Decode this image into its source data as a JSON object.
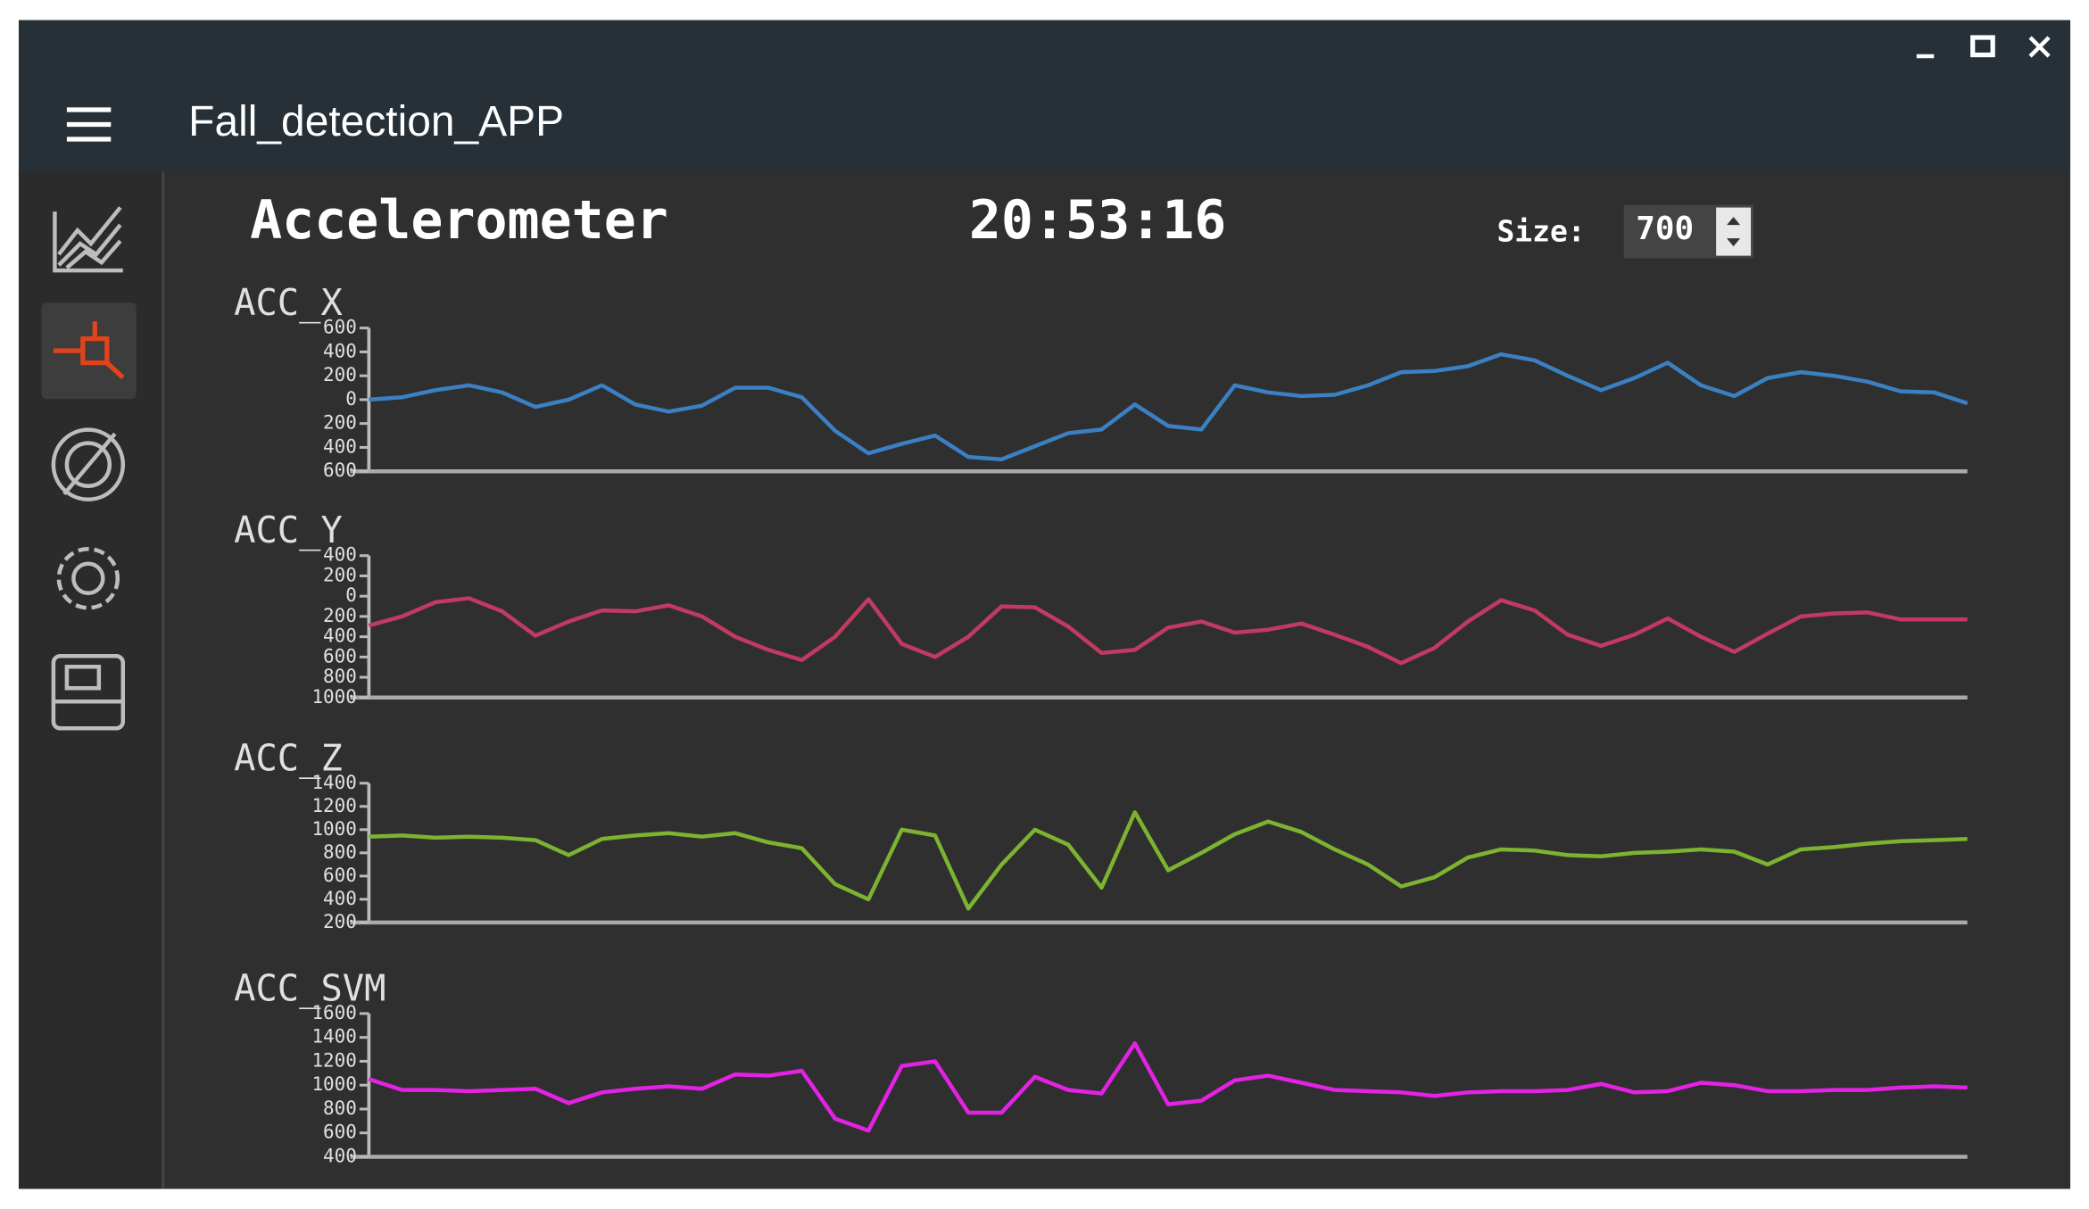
{
  "header": {
    "title": "Fall_detection_APP"
  },
  "panel": {
    "title": "Accelerometer",
    "time": "20:53:16",
    "size_label": "Size:",
    "size_value": "700"
  },
  "chart_data": [
    {
      "type": "line",
      "title": "ACC_X",
      "color": "#3a80c3",
      "ylim": [
        -600,
        600
      ],
      "yticks": [
        600,
        400,
        200,
        0,
        {
          "value": -200,
          "label": "200"
        },
        {
          "value": -400,
          "label": "400"
        },
        {
          "value": -600,
          "label": "600"
        }
      ],
      "values": [
        0,
        20,
        80,
        120,
        60,
        -60,
        0,
        120,
        -40,
        -100,
        -50,
        100,
        100,
        20,
        -260,
        -450,
        -370,
        -300,
        -480,
        -500,
        -390,
        -280,
        -250,
        -40,
        -220,
        -250,
        120,
        60,
        30,
        40,
        120,
        230,
        240,
        280,
        380,
        330,
        200,
        80,
        180,
        310,
        120,
        30,
        180,
        230,
        200,
        150,
        70,
        60,
        -30
      ]
    },
    {
      "type": "line",
      "title": "ACC_Y",
      "color": "#c23a62",
      "ylim": [
        -1000,
        400
      ],
      "yticks": [
        400,
        200,
        0,
        {
          "value": -200,
          "label": "200"
        },
        {
          "value": -400,
          "label": "400"
        },
        {
          "value": -600,
          "label": "600"
        },
        {
          "value": -800,
          "label": "800"
        },
        {
          "value": -1000,
          "label": "1000"
        }
      ],
      "values": [
        -290,
        -200,
        -60,
        -20,
        -150,
        -390,
        -250,
        -140,
        -150,
        -90,
        -200,
        -400,
        -530,
        -630,
        -400,
        -30,
        -470,
        -600,
        -400,
        -100,
        -110,
        -300,
        -560,
        -530,
        -310,
        -250,
        -360,
        -330,
        -270,
        -380,
        -500,
        -660,
        -510,
        -250,
        -40,
        -140,
        -380,
        -490,
        -380,
        -220,
        -400,
        -550,
        -370,
        -200,
        -170,
        -160,
        -230,
        -230,
        -230
      ]
    },
    {
      "type": "line",
      "title": "ACC_Z",
      "color": "#7cb330",
      "ylim": [
        200,
        1400
      ],
      "yticks": [
        1400,
        1200,
        1000,
        800,
        600,
        400,
        200
      ],
      "values": [
        940,
        950,
        930,
        940,
        930,
        910,
        780,
        920,
        950,
        970,
        940,
        970,
        890,
        840,
        530,
        400,
        1000,
        950,
        320,
        700,
        1000,
        870,
        500,
        1150,
        650,
        800,
        960,
        1070,
        980,
        830,
        700,
        510,
        590,
        760,
        830,
        820,
        780,
        770,
        800,
        810,
        830,
        810,
        700,
        830,
        850,
        880,
        900,
        910,
        920
      ]
    },
    {
      "type": "line",
      "title": "ACC_SVM",
      "color": "#e322e3",
      "ylim": [
        400,
        1600
      ],
      "yticks": [
        1600,
        1400,
        1200,
        1000,
        800,
        600,
        400
      ],
      "values": [
        1050,
        960,
        960,
        950,
        960,
        970,
        850,
        940,
        970,
        990,
        970,
        1090,
        1080,
        1120,
        720,
        620,
        1160,
        1200,
        770,
        770,
        1070,
        960,
        930,
        1350,
        840,
        870,
        1040,
        1080,
        1020,
        960,
        950,
        940,
        910,
        940,
        950,
        950,
        960,
        1010,
        940,
        950,
        1020,
        1000,
        950,
        950,
        960,
        960,
        980,
        990,
        980
      ]
    }
  ]
}
